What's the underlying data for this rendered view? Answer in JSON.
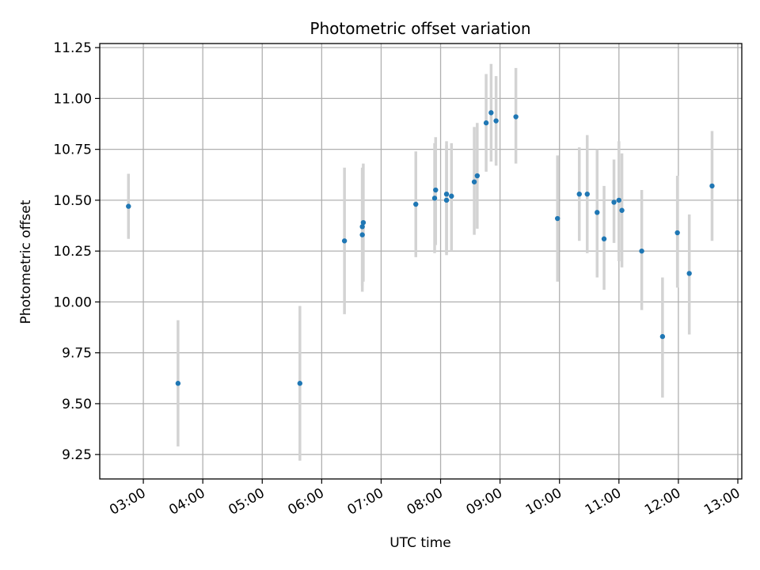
{
  "chart_data": {
    "type": "scatter",
    "title": "Photometric offset variation",
    "xlabel": "UTC time",
    "ylabel": "Photometric offset",
    "x_format": "HH:MM (UTC)",
    "xlim": [
      "02:16",
      "13:04"
    ],
    "ylim": [
      9.13,
      11.27
    ],
    "x_ticks": [
      "03:00",
      "04:00",
      "05:00",
      "06:00",
      "07:00",
      "08:00",
      "09:00",
      "10:00",
      "11:00",
      "12:00",
      "13:00"
    ],
    "y_ticks": [
      9.25,
      9.5,
      9.75,
      10.0,
      10.25,
      10.5,
      10.75,
      11.0,
      11.25
    ],
    "y_tick_labels": [
      "9.25",
      "9.50",
      "9.75",
      "10.00",
      "10.25",
      "10.50",
      "10.75",
      "11.00",
      "11.25"
    ],
    "grid": true,
    "legend": "none",
    "colors": {
      "points": "#1f77b4",
      "error_bars": "#d3d3d3",
      "grid": "#b0b0b0"
    },
    "series": [
      {
        "points": [
          {
            "x": "02:45",
            "y": 10.47,
            "ylow": 10.31,
            "yhigh": 10.63
          },
          {
            "x": "03:35",
            "y": 9.6,
            "ylow": 9.29,
            "yhigh": 9.91
          },
          {
            "x": "05:38",
            "y": 9.6,
            "ylow": 9.22,
            "yhigh": 9.98
          },
          {
            "x": "06:23",
            "y": 10.3,
            "ylow": 9.94,
            "yhigh": 10.66
          },
          {
            "x": "06:41",
            "y": 10.33,
            "ylow": 10.05,
            "yhigh": 10.65
          },
          {
            "x": "06:41",
            "y": 10.37,
            "ylow": 10.08,
            "yhigh": 10.66
          },
          {
            "x": "06:42",
            "y": 10.39,
            "ylow": 10.1,
            "yhigh": 10.68
          },
          {
            "x": "07:35",
            "y": 10.48,
            "ylow": 10.22,
            "yhigh": 10.74
          },
          {
            "x": "07:54",
            "y": 10.51,
            "ylow": 10.24,
            "yhigh": 10.78
          },
          {
            "x": "07:55",
            "y": 10.55,
            "ylow": 10.28,
            "yhigh": 10.81
          },
          {
            "x": "08:06",
            "y": 10.53,
            "ylow": 10.24,
            "yhigh": 10.79
          },
          {
            "x": "08:06",
            "y": 10.5,
            "ylow": 10.23,
            "yhigh": 10.77
          },
          {
            "x": "08:11",
            "y": 10.52,
            "ylow": 10.25,
            "yhigh": 10.78
          },
          {
            "x": "08:34",
            "y": 10.59,
            "ylow": 10.33,
            "yhigh": 10.86
          },
          {
            "x": "08:37",
            "y": 10.62,
            "ylow": 10.36,
            "yhigh": 10.88
          },
          {
            "x": "08:46",
            "y": 10.88,
            "ylow": 10.64,
            "yhigh": 11.12
          },
          {
            "x": "08:51",
            "y": 10.93,
            "ylow": 10.69,
            "yhigh": 11.17
          },
          {
            "x": "08:56",
            "y": 10.89,
            "ylow": 10.67,
            "yhigh": 11.11
          },
          {
            "x": "09:16",
            "y": 10.91,
            "ylow": 10.68,
            "yhigh": 11.15
          },
          {
            "x": "09:58",
            "y": 10.41,
            "ylow": 10.1,
            "yhigh": 10.72
          },
          {
            "x": "10:20",
            "y": 10.53,
            "ylow": 10.3,
            "yhigh": 10.76
          },
          {
            "x": "10:28",
            "y": 10.53,
            "ylow": 10.24,
            "yhigh": 10.82
          },
          {
            "x": "10:38",
            "y": 10.44,
            "ylow": 10.12,
            "yhigh": 10.75
          },
          {
            "x": "10:45",
            "y": 10.31,
            "ylow": 10.06,
            "yhigh": 10.57
          },
          {
            "x": "10:55",
            "y": 10.49,
            "ylow": 10.29,
            "yhigh": 10.7
          },
          {
            "x": "11:00",
            "y": 10.5,
            "ylow": 10.2,
            "yhigh": 10.79
          },
          {
            "x": "11:03",
            "y": 10.45,
            "ylow": 10.17,
            "yhigh": 10.73
          },
          {
            "x": "11:23",
            "y": 10.25,
            "ylow": 9.96,
            "yhigh": 10.55
          },
          {
            "x": "11:44",
            "y": 9.83,
            "ylow": 9.53,
            "yhigh": 10.12
          },
          {
            "x": "11:59",
            "y": 10.34,
            "ylow": 10.07,
            "yhigh": 10.62
          },
          {
            "x": "12:11",
            "y": 10.14,
            "ylow": 9.84,
            "yhigh": 10.43
          },
          {
            "x": "12:34",
            "y": 10.57,
            "ylow": 10.3,
            "yhigh": 10.84
          }
        ]
      }
    ]
  }
}
